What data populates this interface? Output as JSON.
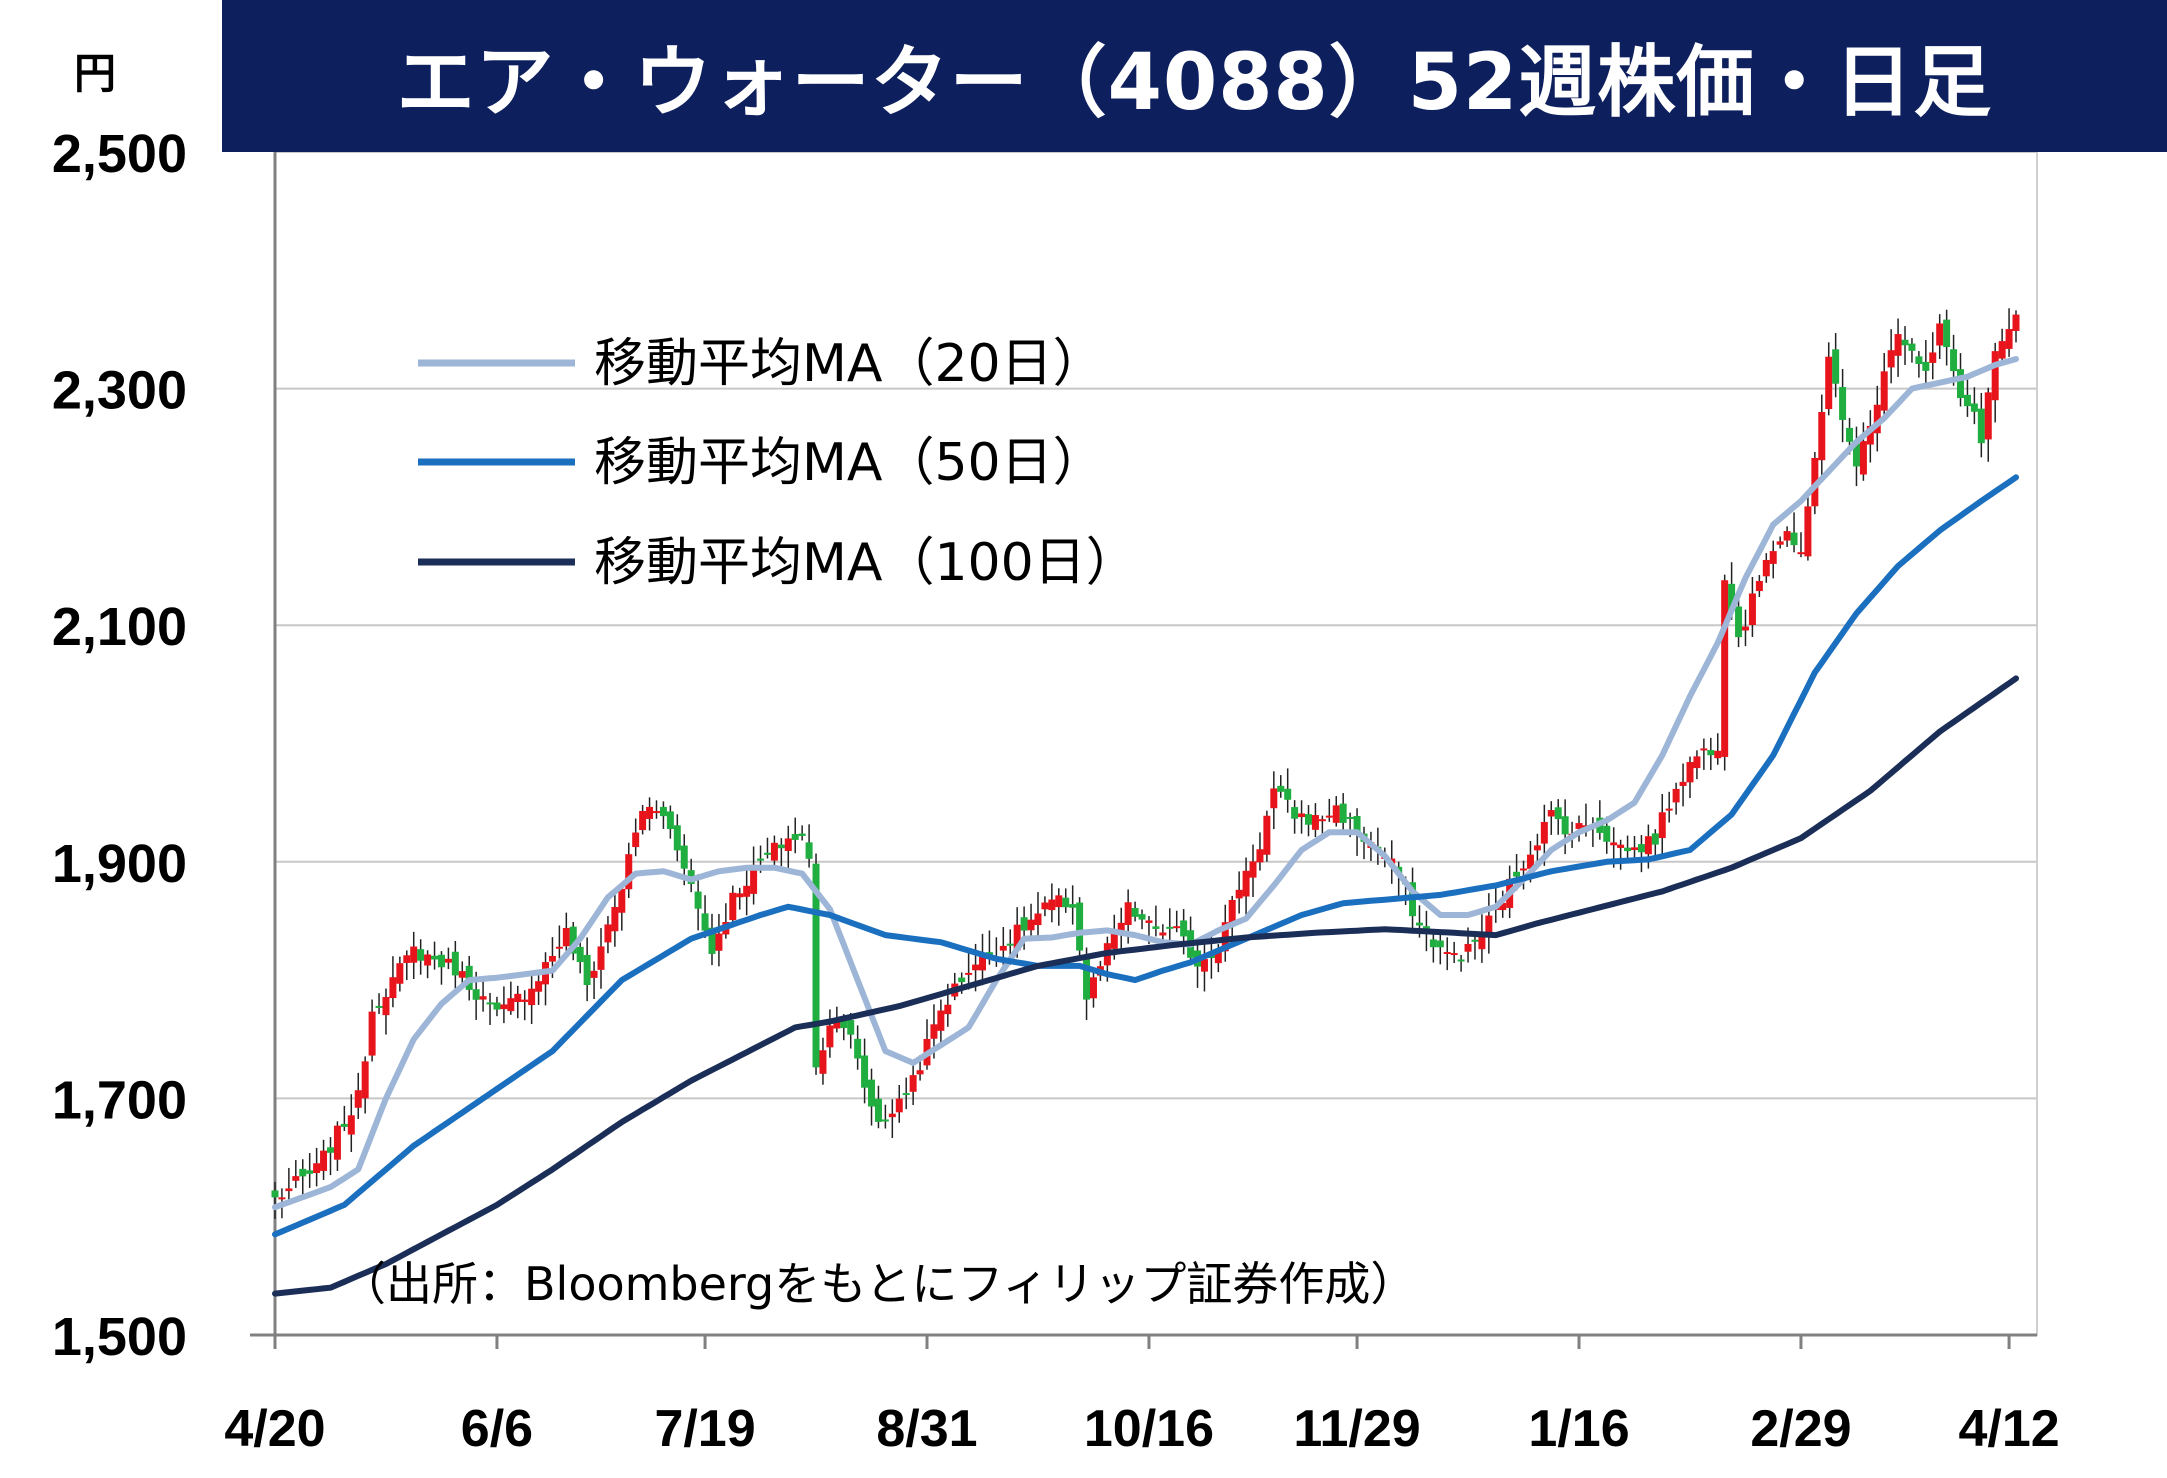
{
  "title": "エア・ウォーター（4088）52週株価・日足",
  "colors": {
    "title_bg": "#0d1f5c",
    "up": "#e8141b",
    "down": "#1fae3f",
    "ma20": "#9db5d6",
    "ma50": "#1b6fbf",
    "ma100": "#1a2e57",
    "grid": "#c8c8c8"
  },
  "chart_data": {
    "type": "candlestick",
    "y_unit": "円",
    "ylim": [
      1500,
      2500
    ],
    "yticks": [
      1500,
      1700,
      1900,
      2100,
      2300,
      2500
    ],
    "ytick_labels": [
      "1,500",
      "1,700",
      "1,900",
      "2,100",
      "2,300",
      "2,500"
    ],
    "grid": "horizontal",
    "xtick_labels": [
      "4/20",
      "6/6",
      "7/19",
      "8/31",
      "10/16",
      "11/29",
      "1/16",
      "2/29",
      "4/12"
    ],
    "xtick_index": [
      0,
      32,
      62,
      94,
      126,
      156,
      188,
      220,
      250
    ],
    "n_days": 252,
    "legend": {
      "position": "upper-left",
      "items": [
        "移動平均MA（20日）",
        "移動平均MA（50日）",
        "移動平均MA（100日）"
      ]
    },
    "source_note": "（出所：Bloombergをもとにフィリップ証券作成）",
    "price_anchors": [
      [
        0,
        1615
      ],
      [
        6,
        1640
      ],
      [
        12,
        1700
      ],
      [
        14,
        1775
      ],
      [
        20,
        1825
      ],
      [
        26,
        1810
      ],
      [
        32,
        1770
      ],
      [
        37,
        1795
      ],
      [
        42,
        1840
      ],
      [
        45,
        1795
      ],
      [
        50,
        1880
      ],
      [
        53,
        1945
      ],
      [
        56,
        1940
      ],
      [
        59,
        1900
      ],
      [
        61,
        1860
      ],
      [
        63,
        1825
      ],
      [
        66,
        1870
      ],
      [
        70,
        1900
      ],
      [
        74,
        1920
      ],
      [
        76,
        1920
      ],
      [
        77,
        1900
      ],
      [
        78,
        1730
      ],
      [
        81,
        1775
      ],
      [
        83,
        1750
      ],
      [
        85,
        1710
      ],
      [
        87,
        1680
      ],
      [
        90,
        1695
      ],
      [
        93,
        1730
      ],
      [
        96,
        1775
      ],
      [
        100,
        1810
      ],
      [
        104,
        1825
      ],
      [
        108,
        1845
      ],
      [
        112,
        1865
      ],
      [
        115,
        1865
      ],
      [
        117,
        1785
      ],
      [
        120,
        1825
      ],
      [
        123,
        1860
      ],
      [
        126,
        1845
      ],
      [
        130,
        1840
      ],
      [
        133,
        1815
      ],
      [
        136,
        1830
      ],
      [
        139,
        1880
      ],
      [
        142,
        1915
      ],
      [
        144,
        1960
      ],
      [
        147,
        1940
      ],
      [
        150,
        1935
      ],
      [
        153,
        1945
      ],
      [
        156,
        1925
      ],
      [
        159,
        1910
      ],
      [
        162,
        1890
      ],
      [
        165,
        1845
      ],
      [
        169,
        1820
      ],
      [
        172,
        1825
      ],
      [
        175,
        1850
      ],
      [
        178,
        1880
      ],
      [
        181,
        1910
      ],
      [
        184,
        1940
      ],
      [
        187,
        1925
      ],
      [
        190,
        1935
      ],
      [
        193,
        1915
      ],
      [
        196,
        1910
      ],
      [
        199,
        1920
      ],
      [
        202,
        1965
      ],
      [
        205,
        1990
      ],
      [
        208,
        2000
      ],
      [
        209,
        2145
      ],
      [
        211,
        2090
      ],
      [
        213,
        2120
      ],
      [
        215,
        2160
      ],
      [
        218,
        2180
      ],
      [
        220,
        2155
      ],
      [
        222,
        2240
      ],
      [
        224,
        2330
      ],
      [
        226,
        2270
      ],
      [
        228,
        2240
      ],
      [
        230,
        2265
      ],
      [
        232,
        2320
      ],
      [
        234,
        2350
      ],
      [
        236,
        2330
      ],
      [
        238,
        2310
      ],
      [
        240,
        2350
      ],
      [
        242,
        2320
      ],
      [
        243,
        2290
      ],
      [
        245,
        2280
      ],
      [
        246,
        2250
      ],
      [
        248,
        2330
      ],
      [
        250,
        2345
      ],
      [
        251,
        2365
      ]
    ],
    "ma20_anchors": [
      [
        0,
        1608
      ],
      [
        8,
        1625
      ],
      [
        12,
        1640
      ],
      [
        16,
        1700
      ],
      [
        20,
        1750
      ],
      [
        24,
        1780
      ],
      [
        28,
        1800
      ],
      [
        32,
        1802
      ],
      [
        36,
        1805
      ],
      [
        40,
        1808
      ],
      [
        44,
        1835
      ],
      [
        48,
        1870
      ],
      [
        52,
        1890
      ],
      [
        56,
        1892
      ],
      [
        60,
        1885
      ],
      [
        64,
        1892
      ],
      [
        68,
        1895
      ],
      [
        72,
        1895
      ],
      [
        76,
        1890
      ],
      [
        80,
        1860
      ],
      [
        84,
        1800
      ],
      [
        88,
        1740
      ],
      [
        92,
        1730
      ],
      [
        96,
        1745
      ],
      [
        100,
        1760
      ],
      [
        104,
        1800
      ],
      [
        108,
        1835
      ],
      [
        112,
        1836
      ],
      [
        116,
        1840
      ],
      [
        120,
        1842
      ],
      [
        124,
        1838
      ],
      [
        128,
        1832
      ],
      [
        132,
        1830
      ],
      [
        136,
        1842
      ],
      [
        140,
        1852
      ],
      [
        144,
        1880
      ],
      [
        148,
        1910
      ],
      [
        152,
        1925
      ],
      [
        156,
        1925
      ],
      [
        160,
        1905
      ],
      [
        164,
        1875
      ],
      [
        168,
        1855
      ],
      [
        172,
        1855
      ],
      [
        176,
        1862
      ],
      [
        180,
        1885
      ],
      [
        184,
        1910
      ],
      [
        188,
        1925
      ],
      [
        192,
        1935
      ],
      [
        196,
        1950
      ],
      [
        200,
        1990
      ],
      [
        204,
        2040
      ],
      [
        208,
        2085
      ],
      [
        212,
        2140
      ],
      [
        216,
        2185
      ],
      [
        220,
        2205
      ],
      [
        224,
        2230
      ],
      [
        228,
        2255
      ],
      [
        232,
        2275
      ],
      [
        236,
        2300
      ],
      [
        240,
        2305
      ],
      [
        244,
        2310
      ],
      [
        248,
        2320
      ],
      [
        251,
        2325
      ]
    ],
    "ma50_anchors": [
      [
        0,
        1585
      ],
      [
        10,
        1610
      ],
      [
        20,
        1660
      ],
      [
        30,
        1700
      ],
      [
        40,
        1740
      ],
      [
        50,
        1800
      ],
      [
        60,
        1835
      ],
      [
        70,
        1855
      ],
      [
        74,
        1862
      ],
      [
        80,
        1855
      ],
      [
        88,
        1838
      ],
      [
        96,
        1832
      ],
      [
        104,
        1818
      ],
      [
        110,
        1812
      ],
      [
        116,
        1812
      ],
      [
        120,
        1805
      ],
      [
        124,
        1800
      ],
      [
        128,
        1808
      ],
      [
        132,
        1815
      ],
      [
        136,
        1825
      ],
      [
        142,
        1840
      ],
      [
        148,
        1855
      ],
      [
        154,
        1865
      ],
      [
        160,
        1868
      ],
      [
        168,
        1872
      ],
      [
        176,
        1880
      ],
      [
        184,
        1892
      ],
      [
        192,
        1900
      ],
      [
        198,
        1902
      ],
      [
        204,
        1910
      ],
      [
        210,
        1940
      ],
      [
        216,
        1990
      ],
      [
        222,
        2060
      ],
      [
        228,
        2110
      ],
      [
        234,
        2150
      ],
      [
        240,
        2180
      ],
      [
        246,
        2205
      ],
      [
        251,
        2225
      ]
    ],
    "ma100_anchors": [
      [
        0,
        1535
      ],
      [
        8,
        1540
      ],
      [
        16,
        1560
      ],
      [
        24,
        1585
      ],
      [
        32,
        1610
      ],
      [
        40,
        1640
      ],
      [
        50,
        1680
      ],
      [
        60,
        1715
      ],
      [
        70,
        1745
      ],
      [
        75,
        1760
      ],
      [
        80,
        1765
      ],
      [
        90,
        1778
      ],
      [
        100,
        1795
      ],
      [
        110,
        1812
      ],
      [
        120,
        1823
      ],
      [
        130,
        1830
      ],
      [
        140,
        1836
      ],
      [
        150,
        1840
      ],
      [
        160,
        1843
      ],
      [
        170,
        1840
      ],
      [
        176,
        1838
      ],
      [
        182,
        1848
      ],
      [
        190,
        1860
      ],
      [
        200,
        1875
      ],
      [
        210,
        1895
      ],
      [
        220,
        1920
      ],
      [
        230,
        1960
      ],
      [
        240,
        2010
      ],
      [
        251,
        2055
      ]
    ]
  }
}
